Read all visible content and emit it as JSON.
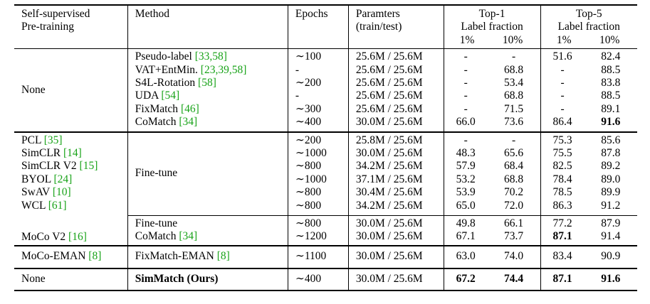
{
  "header": {
    "col0": [
      "Self-supervised",
      "Pre-training"
    ],
    "col1": "Method",
    "col2": "Epochs",
    "col3": [
      "Paramters",
      "(train/test)"
    ],
    "top1": [
      "Top-1",
      "Label fraction"
    ],
    "top5": [
      "Top-5",
      "Label fraction"
    ],
    "sub1": "1%",
    "sub10": "10%"
  },
  "sections": [
    {
      "pretrain": [
        {
          "text": "None",
          "cite": ""
        }
      ],
      "rows": [
        {
          "method": "Pseudo-label",
          "cite": "[33,58]",
          "epochs": "∼100",
          "params": "25.6M / 25.6M",
          "t1_1": "-",
          "t1_10": "-",
          "t5_1": "51.6",
          "t5_10": "82.4"
        },
        {
          "method": "VAT+EntMin.",
          "cite": "[23,39,58]",
          "epochs": "-",
          "params": "25.6M / 25.6M",
          "t1_1": "-",
          "t1_10": "68.8",
          "t5_1": "-",
          "t5_10": "88.5"
        },
        {
          "method": "S4L-Rotation",
          "cite": "[58]",
          "epochs": "∼200",
          "params": "25.6M / 25.6M",
          "t1_1": "-",
          "t1_10": "53.4",
          "t5_1": "-",
          "t5_10": "83.8"
        },
        {
          "method": "UDA",
          "cite": "[54]",
          "epochs": "-",
          "params": "25.6M / 25.6M",
          "t1_1": "-",
          "t1_10": "68.8",
          "t5_1": "-",
          "t5_10": "88.5"
        },
        {
          "method": "FixMatch",
          "cite": "[46]",
          "epochs": "∼300",
          "params": "25.6M / 25.6M",
          "t1_1": "-",
          "t1_10": "71.5",
          "t5_1": "-",
          "t5_10": "89.1"
        },
        {
          "method": "CoMatch",
          "cite": "[34]",
          "epochs": "∼400",
          "params": "30.0M / 25.6M",
          "t1_1": "66.0",
          "t1_10": "73.6",
          "t5_1": "86.4",
          "t5_10": "91.6"
        }
      ]
    },
    {
      "method": "Fine-tune",
      "rows": [
        {
          "pretrain": "PCL",
          "cite": "[35]",
          "epochs": "∼200",
          "params": "25.8M / 25.6M",
          "t1_1": "-",
          "t1_10": "-",
          "t5_1": "75.3",
          "t5_10": "85.6"
        },
        {
          "pretrain": "SimCLR",
          "cite": "[14]",
          "epochs": "∼1000",
          "params": "30.0M / 25.6M",
          "t1_1": "48.3",
          "t1_10": "65.6",
          "t5_1": "75.5",
          "t5_10": "87.8"
        },
        {
          "pretrain": "SimCLR V2",
          "cite": "[15]",
          "epochs": "∼800",
          "params": "34.2M / 25.6M",
          "t1_1": "57.9",
          "t1_10": "68.4",
          "t5_1": "82.5",
          "t5_10": "89.2"
        },
        {
          "pretrain": "BYOL",
          "cite": "[24]",
          "epochs": "∼1000",
          "params": "37.1M / 25.6M",
          "t1_1": "53.2",
          "t1_10": "68.8",
          "t5_1": "78.4",
          "t5_10": "89.0"
        },
        {
          "pretrain": "SwAV",
          "cite": "[10]",
          "epochs": "∼800",
          "params": "30.4M / 25.6M",
          "t1_1": "53.9",
          "t1_10": "70.2",
          "t5_1": "78.5",
          "t5_10": "89.9"
        },
        {
          "pretrain": "WCL",
          "cite": "[61]",
          "epochs": "∼800",
          "params": "34.2M / 25.6M",
          "t1_1": "65.0",
          "t1_10": "72.0",
          "t5_1": "86.3",
          "t5_10": "91.2"
        }
      ]
    },
    {
      "pretrain": "MoCo V2",
      "cite": "[16]",
      "rows": [
        {
          "method": "Fine-tune",
          "cite": "",
          "epochs": "∼800",
          "params": "30.0M / 25.6M",
          "t1_1": "49.8",
          "t1_10": "66.1",
          "t5_1": "77.2",
          "t5_10": "87.9"
        },
        {
          "method": "CoMatch",
          "cite": "[34]",
          "epochs": "∼1200",
          "params": "30.0M / 25.6M",
          "t1_1": "67.1",
          "t1_10": "73.7",
          "t5_1": "87.1",
          "t5_10": "91.4"
        }
      ]
    },
    {
      "pretrain": "MoCo-EMAN",
      "pretrain_cite": "[8]",
      "method": "FixMatch-EMAN",
      "method_cite": "[8]",
      "epochs": "∼1100",
      "params": "30.0M / 25.6M",
      "t1_1": "63.0",
      "t1_10": "74.0",
      "t5_1": "83.4",
      "t5_10": "90.9"
    },
    {
      "pretrain": "None",
      "method": "SimMatch (Ours)",
      "epochs": "∼400",
      "params": "30.0M / 25.6M",
      "t1_1": "67.2",
      "t1_10": "74.4",
      "t5_1": "87.1",
      "t5_10": "91.6"
    }
  ]
}
